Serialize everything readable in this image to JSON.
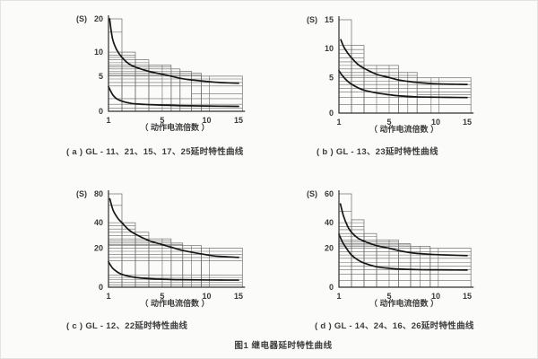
{
  "page": {
    "background": "#fbfbfa",
    "ink_color": "#2f2f2f",
    "grid_color": "#6b6b6b",
    "curve_color": "#161616",
    "figure_caption": "图1  继电器延时特性曲线"
  },
  "chart_data": [
    {
      "id": "a",
      "type": "line",
      "title": "( a ) GL - 11、21、15、17、25延时特性曲线",
      "xlabel": "（ 动作电流倍数 ）",
      "unit": "(S)",
      "xlim": [
        1,
        15.6
      ],
      "ylim": [
        0,
        20
      ],
      "x_ticks": [
        {
          "v": 1,
          "pos": 0
        },
        {
          "v": 5,
          "pos": 0.405
        },
        {
          "v": 10,
          "pos": 0.74
        },
        {
          "v": 15,
          "pos": 0.98
        }
      ],
      "y_ticks": [
        {
          "v": 0,
          "pos": 0
        },
        {
          "v": 5,
          "pos": 0.38
        },
        {
          "v": 10,
          "pos": 0.64
        },
        {
          "v": 20,
          "pos": 1
        }
      ],
      "steps": [
        [
          1,
          2,
          20
        ],
        [
          2,
          3,
          10
        ],
        [
          3,
          4,
          8.4
        ],
        [
          4,
          6,
          7.3
        ],
        [
          6,
          7,
          6.5
        ],
        [
          7,
          8.3,
          6
        ],
        [
          8.3,
          9.4,
          5.6
        ],
        [
          9.4,
          15.6,
          5
        ]
      ],
      "v_lines": [
        [
          5,
          7.3
        ],
        [
          10.4,
          5
        ]
      ],
      "h_lines": [
        [
          16,
          1,
          2
        ],
        [
          10,
          1,
          2
        ],
        [
          9.4,
          1,
          3
        ],
        [
          8.9,
          1,
          3
        ],
        [
          8.4,
          1,
          3
        ],
        [
          7.8,
          1,
          4
        ],
        [
          7.3,
          1,
          4
        ],
        [
          6.9,
          1,
          6
        ],
        [
          6.5,
          1,
          6
        ],
        [
          6.0,
          1,
          7
        ],
        [
          5.6,
          1,
          8.3
        ],
        [
          5.2,
          1,
          9.4
        ],
        [
          5.0,
          1,
          9.4
        ],
        [
          4.6,
          1,
          15.6
        ],
        [
          4.1,
          1,
          15.6
        ],
        [
          3.6,
          1,
          15.6
        ],
        [
          2.5,
          8.3,
          15.6
        ],
        [
          1.8,
          1,
          15.6
        ],
        [
          1.0,
          1,
          15.6
        ],
        [
          0.45,
          1,
          15.6
        ]
      ],
      "series": [
        {
          "name": "upper-limit",
          "points": [
            [
              1.08,
              20
            ],
            [
              1.3,
              14
            ],
            [
              1.6,
              10.8
            ],
            [
              2,
              8.9
            ],
            [
              2.5,
              7.6
            ],
            [
              3,
              6.9
            ],
            [
              4,
              6
            ],
            [
              5,
              5.4
            ],
            [
              6,
              5
            ],
            [
              7,
              4.7
            ],
            [
              8,
              4.5
            ],
            [
              10,
              4.25
            ],
            [
              12,
              4.1
            ],
            [
              15,
              4
            ]
          ]
        },
        {
          "name": "lower-limit",
          "points": [
            [
              1,
              3.5
            ],
            [
              1.3,
              2.4
            ],
            [
              1.6,
              1.8
            ],
            [
              2,
              1.45
            ],
            [
              2.5,
              1.2
            ],
            [
              3,
              1.05
            ],
            [
              4,
              0.95
            ],
            [
              5,
              0.88
            ],
            [
              7,
              0.8
            ],
            [
              10,
              0.75
            ],
            [
              15,
              0.7
            ]
          ]
        }
      ]
    },
    {
      "id": "b",
      "type": "line",
      "title": "( b ) GL - 13、23延时特性曲线",
      "xlabel": "（ 动作电流倍数 ）",
      "unit": "(S)",
      "xlim": [
        1,
        15.6
      ],
      "ylim": [
        0,
        15
      ],
      "x_ticks": [
        {
          "v": 1,
          "pos": 0
        },
        {
          "v": 5,
          "pos": 0.386
        },
        {
          "v": 10,
          "pos": 0.745
        },
        {
          "v": 15,
          "pos": 0.986
        }
      ],
      "y_ticks": [
        {
          "v": 0,
          "pos": 0
        },
        {
          "v": 5,
          "pos": 0.378
        },
        {
          "v": 10,
          "pos": 0.694
        },
        {
          "v": 15,
          "pos": 1
        }
      ],
      "steps": [
        [
          1,
          2,
          15
        ],
        [
          2,
          3,
          10.5
        ],
        [
          3,
          6,
          7.1
        ],
        [
          6,
          8,
          5.9
        ],
        [
          8,
          15.6,
          5
        ]
      ],
      "v_lines": [
        [
          4,
          7.1
        ],
        [
          5,
          7.1
        ],
        [
          7,
          5.9
        ],
        [
          9.5,
          5
        ],
        [
          10.5,
          5
        ]
      ],
      "h_lines": [
        [
          10.5,
          1,
          2
        ],
        [
          9.8,
          1,
          3
        ],
        [
          9.1,
          1,
          3
        ],
        [
          8.4,
          1,
          3
        ],
        [
          7.7,
          1,
          3
        ],
        [
          7.1,
          1,
          3
        ],
        [
          6.5,
          1,
          6
        ],
        [
          5.9,
          1,
          6
        ],
        [
          5.4,
          1,
          8
        ],
        [
          5.0,
          1,
          8
        ],
        [
          4.5,
          1,
          15.6
        ],
        [
          4.05,
          1,
          15.6
        ],
        [
          3.5,
          1,
          15.6
        ],
        [
          3.0,
          1,
          15.6
        ],
        [
          2.6,
          8,
          15.6
        ],
        [
          2.2,
          1,
          15.6
        ],
        [
          1.2,
          1,
          15.6
        ]
      ],
      "series": [
        {
          "name": "upper-limit",
          "points": [
            [
              1.15,
              11.5
            ],
            [
              1.4,
              10.2
            ],
            [
              1.7,
              9.2
            ],
            [
              2,
              8.4
            ],
            [
              2.5,
              7.3
            ],
            [
              3,
              6.6
            ],
            [
              4,
              5.6
            ],
            [
              5,
              5.05
            ],
            [
              6,
              4.7
            ],
            [
              7,
              4.5
            ],
            [
              8,
              4.35
            ],
            [
              10,
              4.15
            ],
            [
              15,
              4.05
            ]
          ]
        },
        {
          "name": "lower-limit",
          "points": [
            [
              1,
              6.2
            ],
            [
              1.3,
              5.3
            ],
            [
              1.7,
              4.5
            ],
            [
              2,
              4.1
            ],
            [
              2.5,
              3.6
            ],
            [
              3,
              3.25
            ],
            [
              4,
              2.85
            ],
            [
              5,
              2.6
            ],
            [
              6,
              2.45
            ],
            [
              8,
              2.3
            ],
            [
              10,
              2.25
            ],
            [
              15,
              2.2
            ]
          ]
        }
      ]
    },
    {
      "id": "c",
      "type": "line",
      "title": "( c ) GL - 12、22延时特性曲线",
      "xlabel": "（ 动作电流倍数 ）",
      "unit": "(S)",
      "xlim": [
        1,
        15.6
      ],
      "ylim": [
        0,
        80
      ],
      "x_ticks": [
        {
          "v": 1,
          "pos": 0
        },
        {
          "v": 5,
          "pos": 0.405
        },
        {
          "v": 10,
          "pos": 0.74
        },
        {
          "v": 15,
          "pos": 0.98
        }
      ],
      "y_ticks": [
        {
          "v": 0,
          "pos": 0
        },
        {
          "v": 20,
          "pos": 0.418
        },
        {
          "v": 40,
          "pos": 0.691
        },
        {
          "v": 80,
          "pos": 1
        }
      ],
      "steps": [
        [
          1,
          2,
          80
        ],
        [
          2,
          3,
          40
        ],
        [
          3,
          4,
          32.5
        ],
        [
          4,
          6,
          27.3
        ],
        [
          6,
          7.3,
          24
        ],
        [
          7.3,
          9.4,
          22
        ],
        [
          9.4,
          15.6,
          20
        ]
      ],
      "v_lines": [
        [
          5,
          27.3
        ],
        [
          8.3,
          22
        ],
        [
          10.4,
          20
        ]
      ],
      "h_lines": [
        [
          64,
          1,
          2
        ],
        [
          40,
          1,
          2
        ],
        [
          37.5,
          1,
          3
        ],
        [
          35,
          1,
          3
        ],
        [
          32.5,
          1,
          3
        ],
        [
          30,
          1,
          4
        ],
        [
          27.3,
          1,
          4
        ],
        [
          25.6,
          1,
          6
        ],
        [
          24,
          1,
          6
        ],
        [
          23,
          1,
          7.3
        ],
        [
          22,
          1,
          7.3
        ],
        [
          20,
          1,
          9.4
        ],
        [
          18.4,
          1,
          15.6
        ],
        [
          16.8,
          1,
          15.6
        ],
        [
          15.2,
          1,
          15.6
        ],
        [
          13.6,
          1,
          15.6
        ],
        [
          6.3,
          1,
          15.6
        ],
        [
          5,
          1,
          15.6
        ],
        [
          3.8,
          1,
          15.6
        ],
        [
          2.4,
          1,
          15.6
        ],
        [
          1.2,
          1,
          15.6
        ]
      ],
      "series": [
        {
          "name": "upper-limit",
          "points": [
            [
              1.1,
              73
            ],
            [
              1.35,
              57
            ],
            [
              1.7,
              46
            ],
            [
              2,
              40
            ],
            [
              2.5,
              34.5
            ],
            [
              3,
              31
            ],
            [
              4,
              26
            ],
            [
              5,
              22.8
            ],
            [
              6,
              20.8
            ],
            [
              7,
              19.2
            ],
            [
              8,
              18.2
            ],
            [
              10,
              16.6
            ],
            [
              12,
              15.8
            ],
            [
              15,
              15.3
            ]
          ]
        },
        {
          "name": "lower-limit",
          "points": [
            [
              1,
              13
            ],
            [
              1.3,
              9.8
            ],
            [
              1.7,
              7.6
            ],
            [
              2,
              6.6
            ],
            [
              2.5,
              5.6
            ],
            [
              3,
              5
            ],
            [
              4,
              4.4
            ],
            [
              5,
              4.1
            ],
            [
              7,
              3.85
            ],
            [
              10,
              3.7
            ],
            [
              15,
              3.65
            ]
          ]
        }
      ]
    },
    {
      "id": "d",
      "type": "line",
      "title": "( d ) GL - 14、24、16、26延时特性曲线",
      "xlabel": "（ 动作电流倍数 ）",
      "unit": "(S)",
      "xlim": [
        1,
        15.6
      ],
      "ylim": [
        0,
        60
      ],
      "x_ticks": [
        {
          "v": 1,
          "pos": 0
        },
        {
          "v": 5,
          "pos": 0.386
        },
        {
          "v": 10,
          "pos": 0.745
        },
        {
          "v": 15,
          "pos": 0.986
        }
      ],
      "y_ticks": [
        {
          "v": 0,
          "pos": 0
        },
        {
          "v": 20,
          "pos": 0.418
        },
        {
          "v": 40,
          "pos": 0.691
        },
        {
          "v": 60,
          "pos": 1
        }
      ],
      "steps": [
        [
          1,
          2,
          60
        ],
        [
          2,
          3,
          42
        ],
        [
          3,
          4,
          31.5
        ],
        [
          4,
          6,
          26.5
        ],
        [
          6,
          7.3,
          23.5
        ],
        [
          7.3,
          9.4,
          21.5
        ],
        [
          9.4,
          15.6,
          20
        ]
      ],
      "v_lines": [
        [
          5,
          26.5
        ],
        [
          8.3,
          21.5
        ],
        [
          10.4,
          20
        ]
      ],
      "h_lines": [
        [
          48,
          1,
          2
        ],
        [
          40,
          1,
          3
        ],
        [
          37,
          1,
          3
        ],
        [
          34.5,
          1,
          3
        ],
        [
          31.5,
          1,
          3
        ],
        [
          29,
          1,
          4
        ],
        [
          26.5,
          1,
          4
        ],
        [
          24.8,
          1,
          6
        ],
        [
          23.5,
          1,
          6
        ],
        [
          22.5,
          1,
          7.3
        ],
        [
          21.5,
          1,
          7.3
        ],
        [
          20,
          1,
          9.4
        ],
        [
          18.2,
          1,
          15.6
        ],
        [
          16.5,
          1,
          15.6
        ],
        [
          14.8,
          1,
          15.6
        ],
        [
          12.6,
          1,
          15.6
        ],
        [
          10.8,
          1,
          15.6
        ],
        [
          8.9,
          1,
          15.6
        ],
        [
          6.6,
          1,
          15.6
        ],
        [
          3.4,
          1,
          15.6
        ]
      ],
      "series": [
        {
          "name": "upper-limit",
          "points": [
            [
              1.12,
              53
            ],
            [
              1.35,
              45
            ],
            [
              1.7,
              37
            ],
            [
              2,
              32.5
            ],
            [
              2.5,
              28
            ],
            [
              3,
              25.5
            ],
            [
              4,
              22
            ],
            [
              5,
              20
            ],
            [
              6,
              18.8
            ],
            [
              7,
              17.9
            ],
            [
              8,
              17.3
            ],
            [
              10,
              16.7
            ],
            [
              15,
              16.2
            ]
          ]
        },
        {
          "name": "lower-limit",
          "points": [
            [
              1,
              31
            ],
            [
              1.3,
              24.5
            ],
            [
              1.7,
              19
            ],
            [
              2,
              16.5
            ],
            [
              2.5,
              14
            ],
            [
              3,
              12.4
            ],
            [
              4,
              10.5
            ],
            [
              5,
              9.7
            ],
            [
              6,
              9.3
            ],
            [
              8,
              9
            ],
            [
              10,
              8.9
            ],
            [
              15,
              8.8
            ]
          ]
        }
      ]
    }
  ]
}
